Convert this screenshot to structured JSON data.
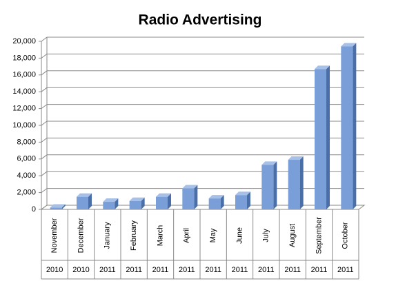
{
  "chart_data": {
    "type": "bar",
    "title": "Radio Advertising",
    "categories": [
      "November",
      "December",
      "January",
      "February",
      "March",
      "April",
      "May",
      "June",
      "July",
      "August",
      "September",
      "October"
    ],
    "years": [
      "2010",
      "2010",
      "2011",
      "2011",
      "2011",
      "2011",
      "2011",
      "2011",
      "2011",
      "2011",
      "2011",
      "2011"
    ],
    "values": [
      200,
      1500,
      900,
      1000,
      1500,
      2500,
      1300,
      1700,
      5300,
      5900,
      16700,
      19400
    ],
    "color": "#7a9fd8",
    "ylim": [
      0,
      20000
    ],
    "yticks": [
      0,
      {
        "value": 2000,
        "label": "2,000"
      },
      {
        "value": 4000,
        "label": "4,000"
      },
      {
        "value": 6000,
        "label": "6,000"
      },
      {
        "value": 8000,
        "label": "8,000"
      },
      {
        "value": 10000,
        "label": "10,000"
      },
      {
        "value": 12000,
        "label": "12,000"
      },
      {
        "value": 14000,
        "label": "14,000"
      },
      {
        "value": 16000,
        "label": "16,000"
      },
      {
        "value": 18000,
        "label": "18,000"
      },
      {
        "value": 20000,
        "label": "20,000"
      }
    ],
    "grid": true
  }
}
